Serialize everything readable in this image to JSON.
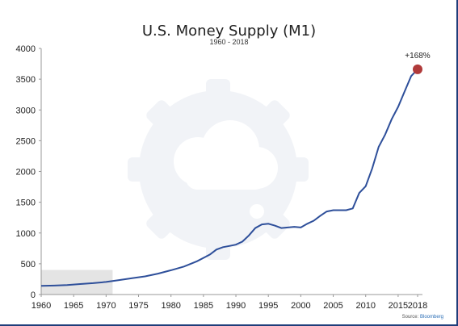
{
  "chart_data": {
    "type": "line",
    "title": "U.S. Money Supply (M1)",
    "subtitle": "1960 - 2018",
    "xlabel": "",
    "ylabel": "",
    "xlim": [
      1960,
      2018
    ],
    "ylim": [
      0,
      4000
    ],
    "x_ticks": [
      1960,
      1965,
      1970,
      1975,
      1980,
      1985,
      1990,
      1995,
      2000,
      2005,
      2010,
      2015,
      2018
    ],
    "y_ticks": [
      0,
      500,
      1000,
      1500,
      2000,
      2500,
      3000,
      3500,
      4000
    ],
    "grid": false,
    "legend": "none",
    "series": [
      {
        "color": "#2e4f9a",
        "points": [
          [
            1960,
            140
          ],
          [
            1962,
            145
          ],
          [
            1964,
            155
          ],
          [
            1966,
            170
          ],
          [
            1968,
            185
          ],
          [
            1970,
            205
          ],
          [
            1972,
            235
          ],
          [
            1974,
            265
          ],
          [
            1976,
            295
          ],
          [
            1978,
            340
          ],
          [
            1980,
            395
          ],
          [
            1982,
            455
          ],
          [
            1984,
            540
          ],
          [
            1986,
            650
          ],
          [
            1987,
            730
          ],
          [
            1988,
            770
          ],
          [
            1989,
            790
          ],
          [
            1990,
            810
          ],
          [
            1991,
            860
          ],
          [
            1992,
            960
          ],
          [
            1993,
            1080
          ],
          [
            1994,
            1140
          ],
          [
            1995,
            1150
          ],
          [
            1996,
            1120
          ],
          [
            1997,
            1080
          ],
          [
            1998,
            1090
          ],
          [
            1999,
            1100
          ],
          [
            2000,
            1090
          ],
          [
            2001,
            1150
          ],
          [
            2002,
            1200
          ],
          [
            2003,
            1280
          ],
          [
            2004,
            1350
          ],
          [
            2005,
            1370
          ],
          [
            2006,
            1370
          ],
          [
            2007,
            1370
          ],
          [
            2008,
            1400
          ],
          [
            2009,
            1650
          ],
          [
            2010,
            1760
          ],
          [
            2011,
            2050
          ],
          [
            2012,
            2400
          ],
          [
            2013,
            2600
          ],
          [
            2014,
            2850
          ],
          [
            2015,
            3050
          ],
          [
            2016,
            3300
          ],
          [
            2017,
            3550
          ],
          [
            2018,
            3660
          ]
        ]
      }
    ],
    "highlight_point": {
      "x": 2018,
      "y": 3660,
      "color": "#b03a3a"
    },
    "annotations": [
      {
        "text": "+168%",
        "x": 2018,
        "y": 3660
      }
    ],
    "shaded_region": {
      "x": [
        1960,
        1971
      ],
      "y": [
        0,
        400
      ],
      "color": "#e4e4e4"
    }
  },
  "source": {
    "label": "Source:",
    "brand": "Bloomberg"
  }
}
